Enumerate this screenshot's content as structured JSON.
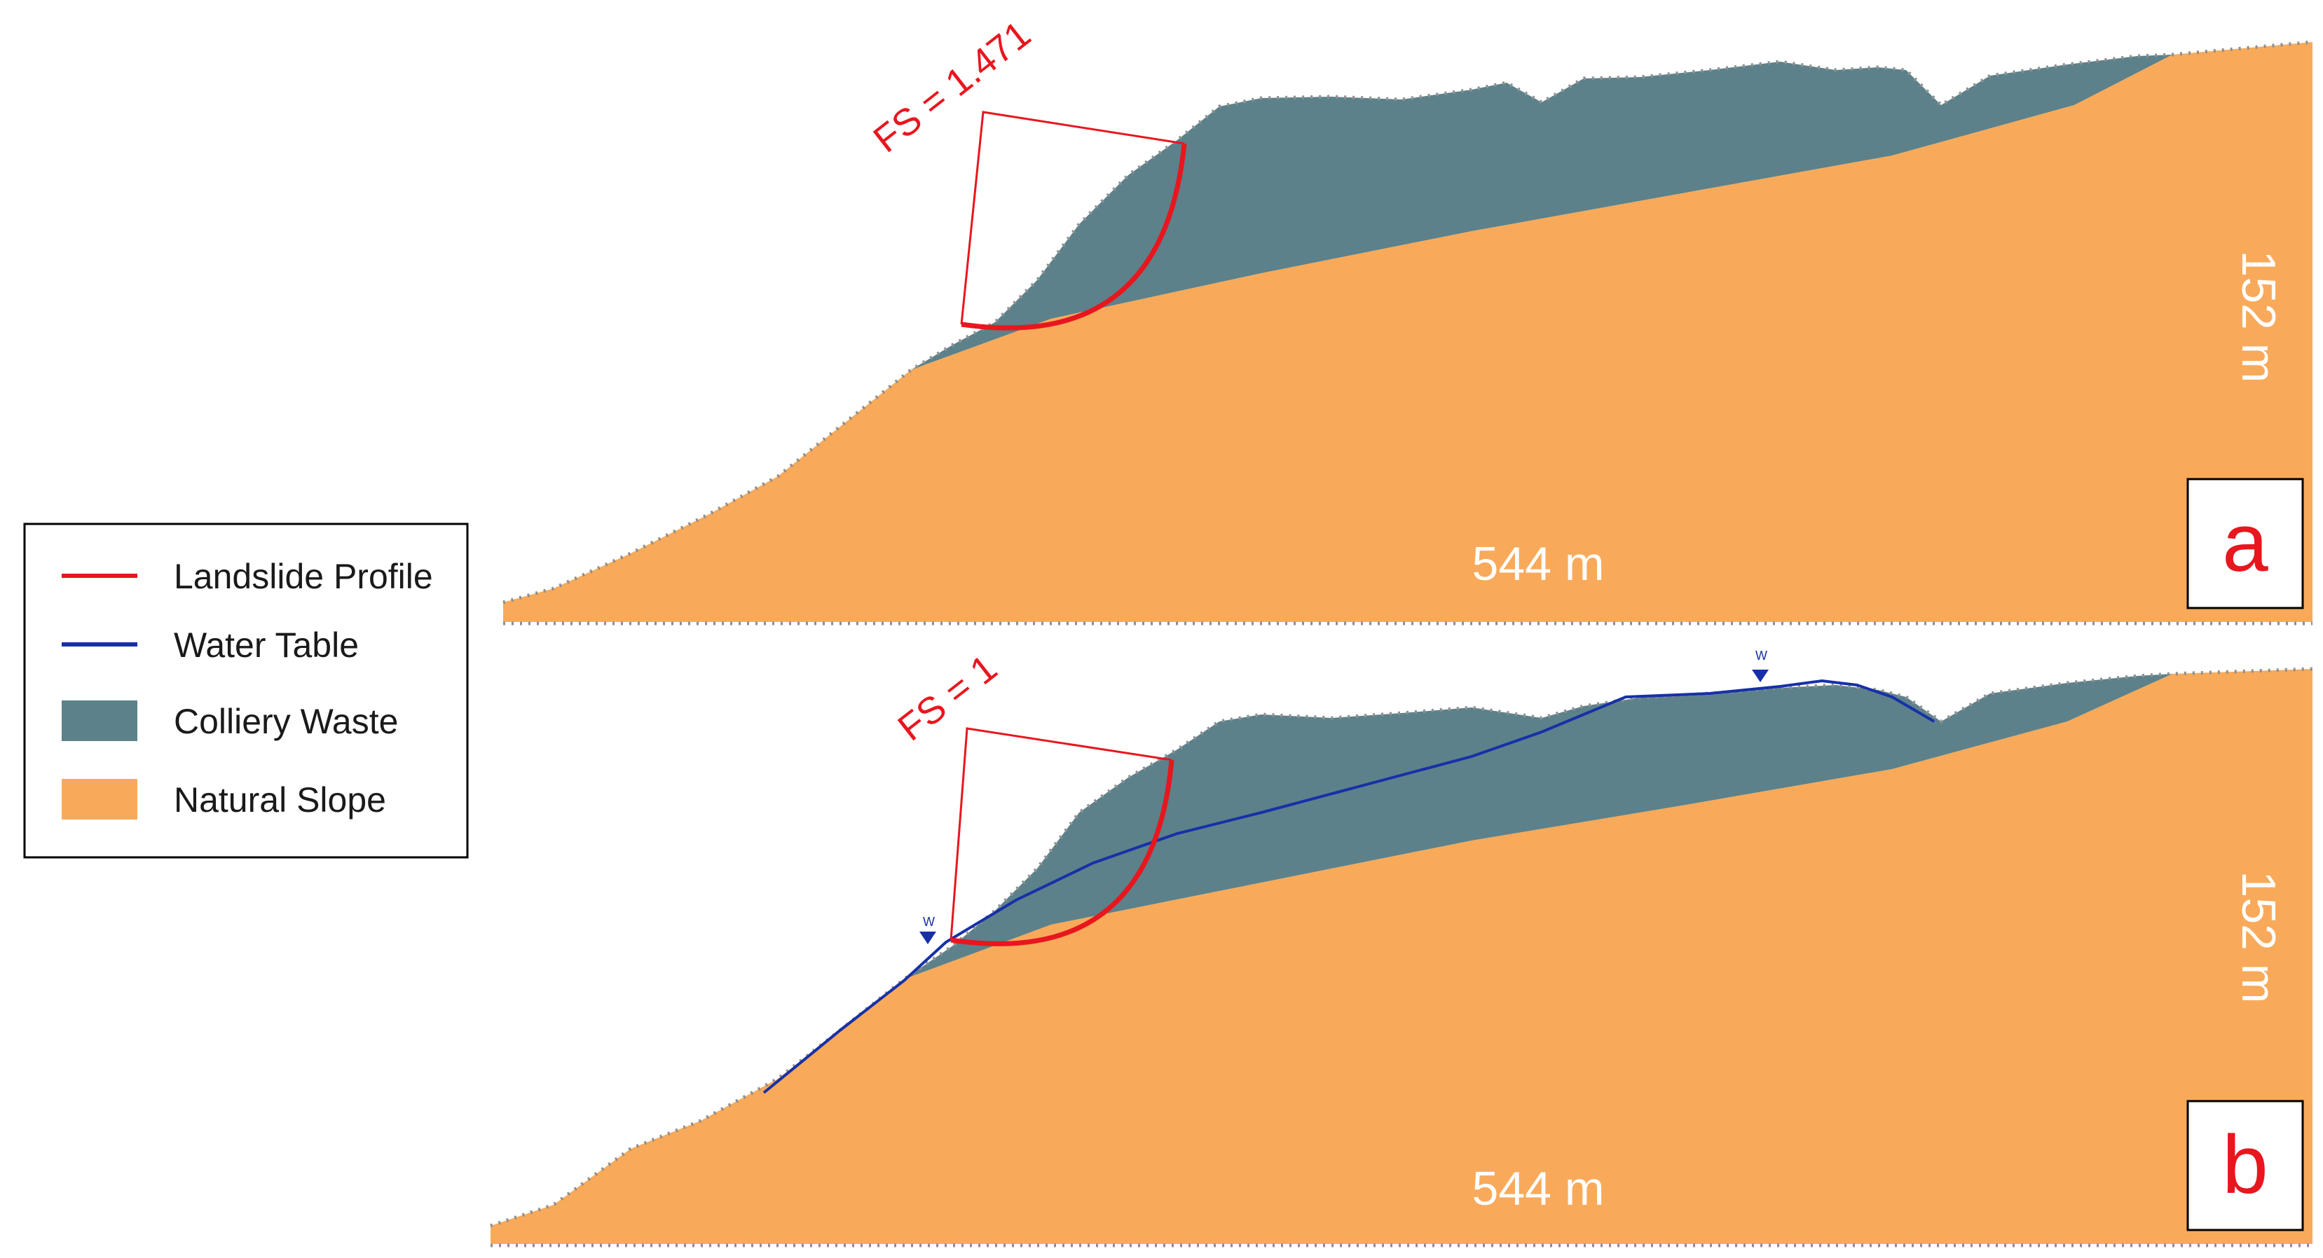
{
  "colors": {
    "natural_slope": "#F8AA5A",
    "colliery_waste": "#5C818A",
    "landslide_profile": "#E8161E",
    "water_table": "#1730A8",
    "label_red": "#E8161E",
    "dimension_text": "#FFFFFF"
  },
  "legend": {
    "items": [
      {
        "label": "Landslide Profile",
        "symbol": "line",
        "color_key": "landslide_profile"
      },
      {
        "label": "Water Table",
        "symbol": "line",
        "color_key": "water_table"
      },
      {
        "label": "Colliery Waste",
        "symbol": "box",
        "color_key": "colliery_waste"
      },
      {
        "label": "Natural Slope",
        "symbol": "box",
        "color_key": "natural_slope"
      }
    ]
  },
  "panels": [
    {
      "letter": "a",
      "fs_label": "FS = 1.471",
      "width_label": "544 m",
      "height_label": "152 m",
      "has_water_table": false,
      "water_table_marker": ""
    },
    {
      "letter": "b",
      "fs_label": "FS = 1",
      "width_label": "544 m",
      "height_label": "152 m",
      "has_water_table": true,
      "water_table_marker": "W"
    }
  ]
}
